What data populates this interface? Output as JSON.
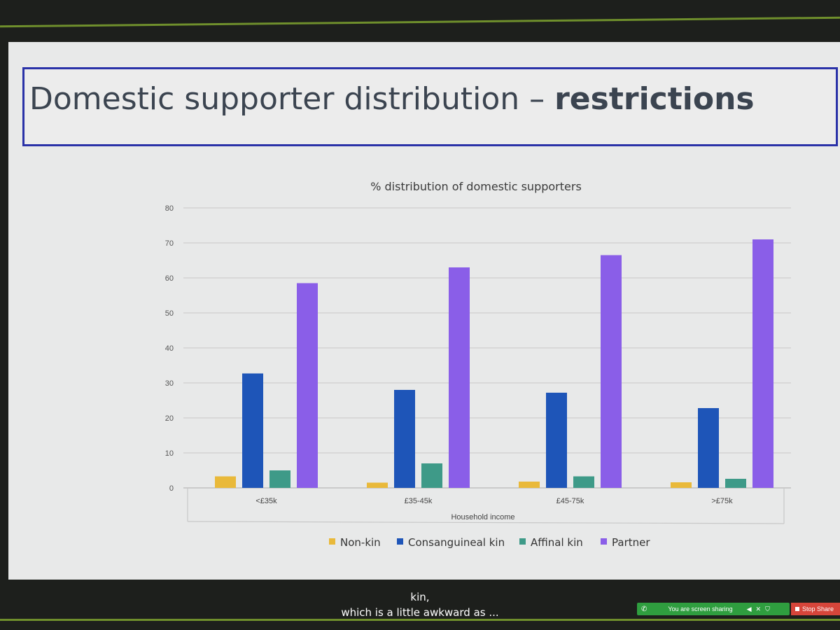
{
  "slide": {
    "title_normal": "Domestic supporter distribution – ",
    "title_bold": "restrictions"
  },
  "chart_data": {
    "type": "bar",
    "title": "% distribution of domestic supporters",
    "xlabel": "Household income",
    "ylabel": "",
    "ylim": [
      0,
      80
    ],
    "yticks": [
      0,
      10,
      20,
      30,
      40,
      50,
      60,
      70,
      80
    ],
    "categories": [
      "<£35k",
      "£35-45k",
      "£45-75k",
      ">£75k"
    ],
    "series": [
      {
        "name": "Non-kin",
        "color": "#e9b93a",
        "values": [
          3.3,
          1.5,
          1.8,
          1.6
        ]
      },
      {
        "name": "Consanguineal kin",
        "color": "#1e55b8",
        "values": [
          32.7,
          28.0,
          27.2,
          22.8
        ]
      },
      {
        "name": "Affinal kin",
        "color": "#3e9a88",
        "values": [
          5.0,
          7.0,
          3.3,
          2.6
        ]
      },
      {
        "name": "Partner",
        "color": "#8a5ee8",
        "values": [
          58.5,
          63.0,
          66.5,
          71.0
        ]
      }
    ],
    "grid": true,
    "legend": "bottom"
  },
  "caption": {
    "line1": "kin,",
    "line2": "which is a little awkward as ..."
  },
  "zoom_bar": {
    "sharing_text": "You are screen sharing",
    "stop_label": "Stop Share"
  }
}
